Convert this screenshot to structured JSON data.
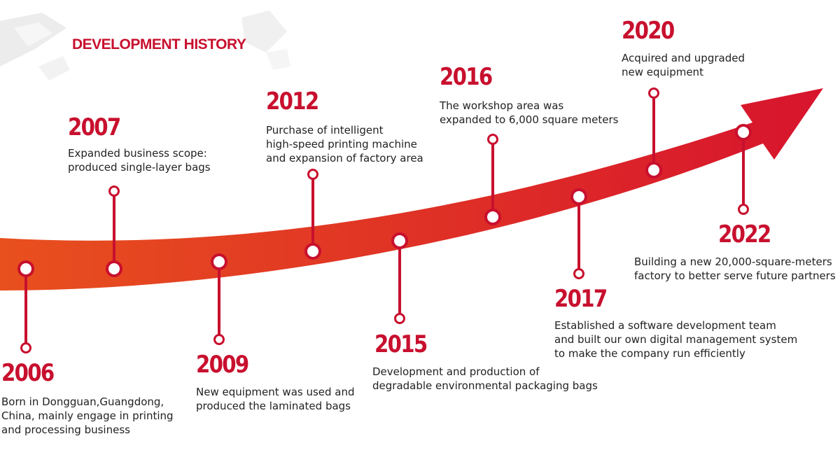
{
  "title": "DEVELOPMENT HISTORY",
  "colors": {
    "accent_red": "#c8102e",
    "arrow_start": "#e8501e",
    "arrow_end": "#d7142d",
    "node_fill": "#ffffff",
    "decor_gray": "#ececec"
  },
  "events": [
    {
      "year": "2006",
      "lines": [
        "Born in Dongguan,Guangdong,",
        "China, mainly engage in printing",
        "and processing business"
      ]
    },
    {
      "year": "2007",
      "lines": [
        "Expanded business scope:",
        "produced single-layer bags"
      ]
    },
    {
      "year": "2009",
      "lines": [
        "New equipment was used and",
        "produced the laminated bags"
      ]
    },
    {
      "year": "2012",
      "lines": [
        "Purchase of intelligent",
        "high-speed printing machine",
        "and expansion of factory area"
      ]
    },
    {
      "year": "2015",
      "lines": [
        "Development and production of",
        "degradable environmental packaging bags"
      ]
    },
    {
      "year": "2016",
      "lines": [
        "The workshop area was",
        "expanded to 6,000 square meters"
      ]
    },
    {
      "year": "2017",
      "lines": [
        "Established a software development team",
        "and built our own digital management system",
        "to make the company run efficiently"
      ]
    },
    {
      "year": "2020",
      "lines": [
        "Acquired and upgraded",
        "new equipment"
      ]
    },
    {
      "year": "2022",
      "lines": [
        "Building a new 20,000-square-meters",
        "factory to better serve future partners"
      ]
    }
  ]
}
